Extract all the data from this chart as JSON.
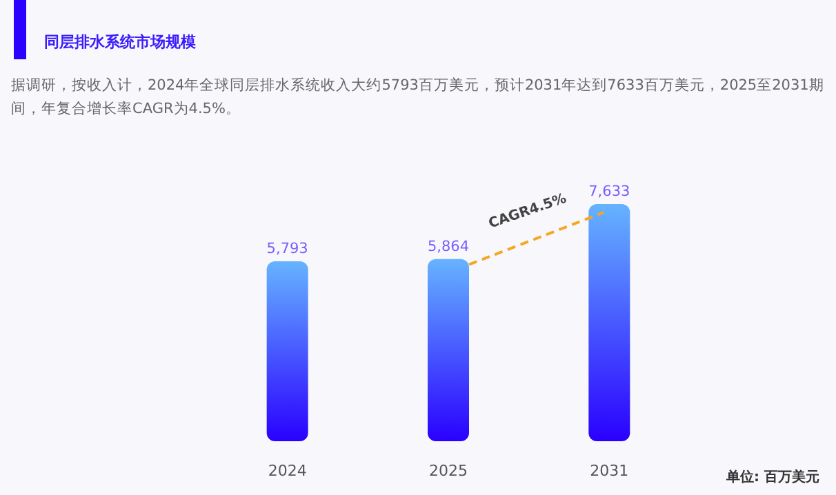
{
  "chart_data": {
    "type": "bar",
    "title": "同层排水系统市场规模",
    "subtitle": "据调研，按收入计，2024年全球同层排水系统收入大约5793百万美元，预计2031年达到7633百万美元，2025至2031期间，年复合增长率CAGR为4.5%。",
    "categories": [
      "2024",
      "2025",
      "2031"
    ],
    "values": [
      5793,
      5864,
      7633
    ],
    "value_labels": [
      "5,793",
      "5,864",
      "7,633"
    ],
    "color": "#2a00ff",
    "annotations": [
      "CAGR4.5%",
      "单位: 百万美元"
    ]
  }
}
